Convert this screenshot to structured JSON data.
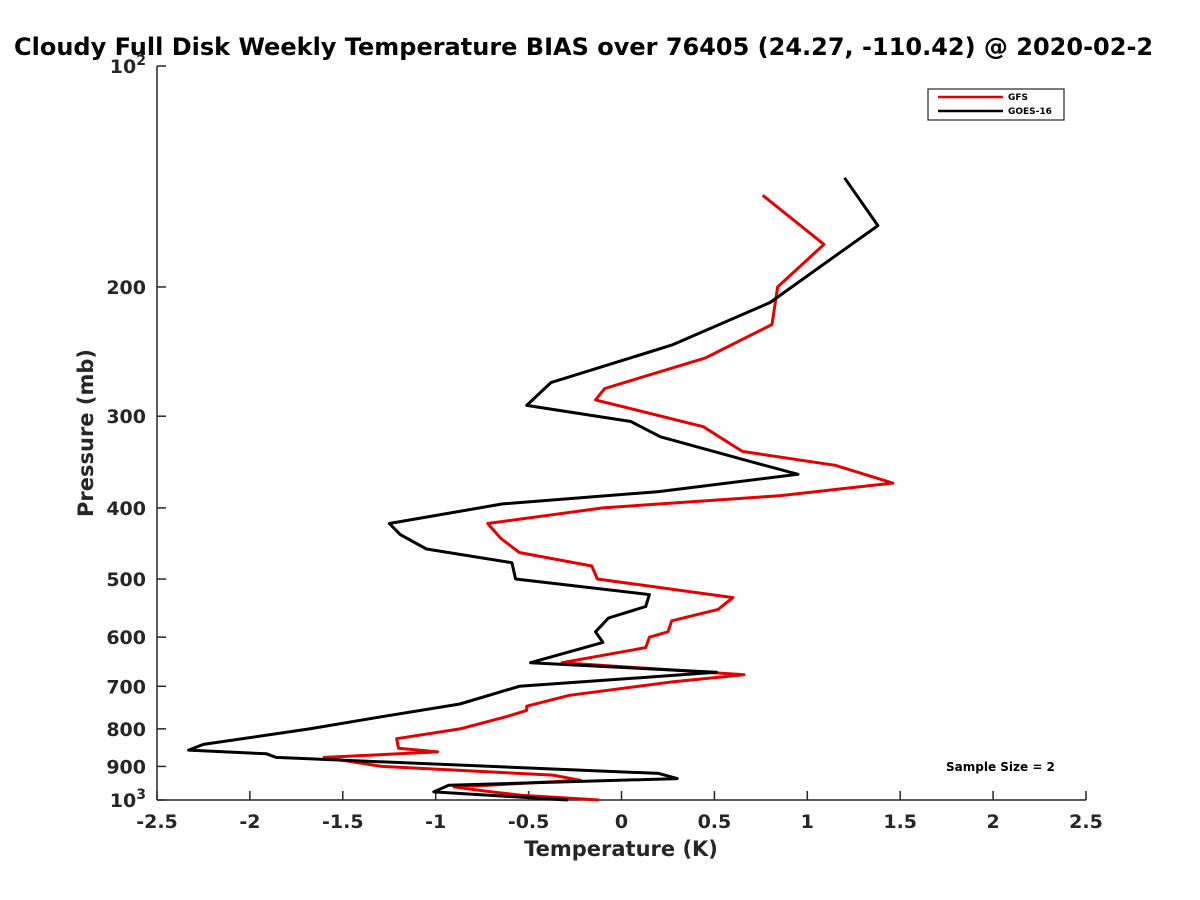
{
  "chart_data": {
    "type": "line",
    "title": "Cloudy Full Disk Weekly Temperature BIAS over 76405 (24.27, -110.42) @ 2020-02-2",
    "xlabel": "Temperature (K)",
    "ylabel": "Pressure (mb)",
    "xlim": [
      -2.5,
      2.5
    ],
    "ylim": [
      100,
      1000
    ],
    "y_scale": "log",
    "y_reversed": true,
    "grid": false,
    "legend_position": "top-right",
    "x_ticks": [
      "-2.5",
      "-2",
      "-1.5",
      "-1",
      "-0.5",
      "0",
      "0.5",
      "1",
      "1.5",
      "2",
      "2.5"
    ],
    "y_ticks": [
      {
        "value": 100,
        "label": "10",
        "sup": "2"
      },
      {
        "value": 200,
        "label": "200"
      },
      {
        "value": 300,
        "label": "300"
      },
      {
        "value": 400,
        "label": "400"
      },
      {
        "value": 500,
        "label": "500"
      },
      {
        "value": 600,
        "label": "600"
      },
      {
        "value": 700,
        "label": "700"
      },
      {
        "value": 800,
        "label": "800"
      },
      {
        "value": 900,
        "label": "900"
      },
      {
        "value": 1000,
        "label": "10",
        "sup": "3"
      }
    ],
    "annotation": "Sample Size = 2",
    "series": [
      {
        "name": "GFS",
        "color": "#e00000",
        "points": [
          [
            0.76,
            150
          ],
          [
            1.09,
            175
          ],
          [
            0.84,
            200
          ],
          [
            0.81,
            225
          ],
          [
            0.45,
            250
          ],
          [
            -0.09,
            275
          ],
          [
            -0.14,
            285
          ],
          [
            0.44,
            310
          ],
          [
            0.65,
            335
          ],
          [
            1.15,
            350
          ],
          [
            1.46,
            370
          ],
          [
            0.85,
            385
          ],
          [
            -0.1,
            400
          ],
          [
            -0.72,
            420
          ],
          [
            -0.65,
            440
          ],
          [
            -0.55,
            460
          ],
          [
            -0.16,
            480
          ],
          [
            -0.13,
            500
          ],
          [
            0.6,
            530
          ],
          [
            0.52,
            550
          ],
          [
            0.27,
            570
          ],
          [
            0.25,
            590
          ],
          [
            0.15,
            600
          ],
          [
            0.13,
            620
          ],
          [
            -0.32,
            650
          ],
          [
            0.66,
            675
          ],
          [
            0.28,
            690
          ],
          [
            -0.28,
            720
          ],
          [
            -0.51,
            745
          ],
          [
            -0.51,
            755
          ],
          [
            -0.62,
            770
          ],
          [
            -0.87,
            800
          ],
          [
            -1.21,
            825
          ],
          [
            -1.2,
            850
          ],
          [
            -0.99,
            860
          ],
          [
            -1.6,
            875
          ],
          [
            -1.29,
            900
          ],
          [
            -0.37,
            925
          ],
          [
            -0.22,
            940
          ],
          [
            -0.9,
            960
          ],
          [
            -0.7,
            975
          ],
          [
            -0.54,
            985
          ],
          [
            -0.12,
            1000
          ]
        ]
      },
      {
        "name": "GOES-16",
        "color": "#000000",
        "points": [
          [
            1.2,
            142
          ],
          [
            1.38,
            165
          ],
          [
            1.04,
            190
          ],
          [
            0.8,
            210
          ],
          [
            0.27,
            240
          ],
          [
            -0.38,
            270
          ],
          [
            -0.51,
            290
          ],
          [
            0.05,
            305
          ],
          [
            0.21,
            320
          ],
          [
            0.68,
            345
          ],
          [
            0.95,
            360
          ],
          [
            0.2,
            380
          ],
          [
            -0.64,
            395
          ],
          [
            -1.25,
            420
          ],
          [
            -1.19,
            435
          ],
          [
            -1.05,
            455
          ],
          [
            -0.59,
            475
          ],
          [
            -0.57,
            500
          ],
          [
            0.15,
            525
          ],
          [
            0.13,
            545
          ],
          [
            -0.07,
            565
          ],
          [
            -0.14,
            590
          ],
          [
            -0.1,
            610
          ],
          [
            -0.49,
            650
          ],
          [
            0.51,
            670
          ],
          [
            -0.55,
            700
          ],
          [
            -0.87,
            740
          ],
          [
            -1.29,
            770
          ],
          [
            -1.68,
            800
          ],
          [
            -2.25,
            840
          ],
          [
            -2.33,
            855
          ],
          [
            -1.91,
            865
          ],
          [
            -1.86,
            875
          ],
          [
            0.2,
            920
          ],
          [
            0.3,
            935
          ],
          [
            -0.93,
            955
          ],
          [
            -1.01,
            975
          ],
          [
            -0.29,
            1000
          ]
        ]
      }
    ]
  }
}
